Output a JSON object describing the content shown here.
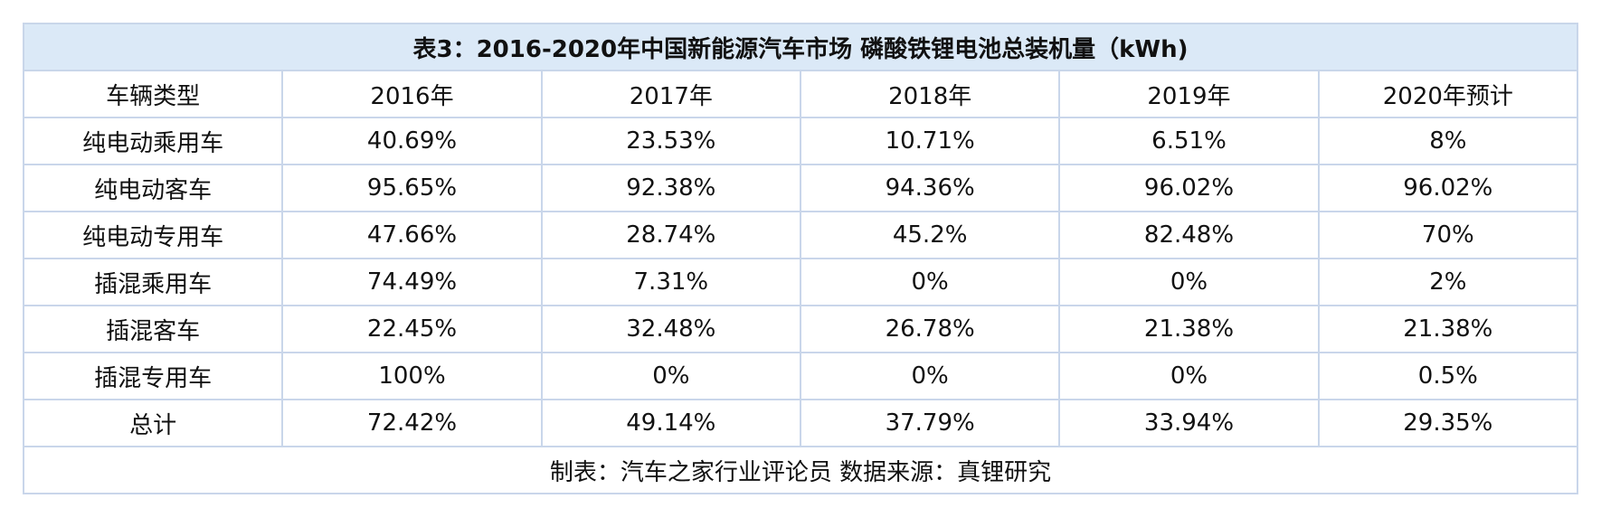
{
  "chart_data": {
    "type": "table",
    "title": "表3：2016-2020年中国新能源汽车市场 磷酸铁锂电池总装机量（kWh)",
    "columns": [
      "车辆类型",
      "2016年",
      "2017年",
      "2018年",
      "2019年",
      "2020年预计"
    ],
    "rows": [
      {
        "label": "纯电动乘用车",
        "values": [
          "40.69%",
          "23.53%",
          "10.71%",
          "6.51%",
          "8%"
        ]
      },
      {
        "label": "纯电动客车",
        "values": [
          "95.65%",
          "92.38%",
          "94.36%",
          "96.02%",
          "96.02%"
        ]
      },
      {
        "label": "纯电动专用车",
        "values": [
          "47.66%",
          "28.74%",
          "45.2%",
          "82.48%",
          "70%"
        ]
      },
      {
        "label": "插混乘用车",
        "values": [
          "74.49%",
          "7.31%",
          "0%",
          "0%",
          "2%"
        ]
      },
      {
        "label": "插混客车",
        "values": [
          "22.45%",
          "32.48%",
          "26.78%",
          "21.38%",
          "21.38%"
        ]
      },
      {
        "label": "插混专用车",
        "values": [
          "100%",
          "0%",
          "0%",
          "0%",
          "0.5%"
        ]
      },
      {
        "label": "总计",
        "values": [
          "72.42%",
          "49.14%",
          "37.79%",
          "33.94%",
          "29.35%"
        ]
      }
    ],
    "footer": "制表：汽车之家行业评论员  数据来源：真锂研究"
  }
}
